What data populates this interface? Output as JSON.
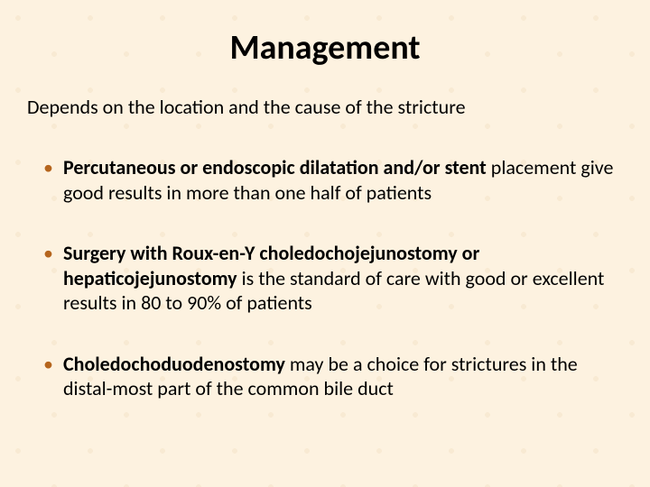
{
  "slide": {
    "title": "Management",
    "intro": "Depends on the location and the cause of the stricture",
    "bullets": [
      {
        "bold": "Percutaneous or endoscopic dilatation and/or stent",
        "rest": " placement give good results in more than one half of patients"
      },
      {
        "bold": "Surgery with Roux-en-Y choledochojejunostomy or hepaticojejunostomy",
        "rest": " is the standard of care with good or excellent results in 80 to 90% of patients"
      },
      {
        "bold": "Choledochoduodenostomy",
        "rest": " may be a choice for strictures in the distal-most part of the common bile duct"
      }
    ],
    "colors": {
      "background": "#fdf2e0",
      "bullet_marker": "#b5651d",
      "text": "#000000"
    },
    "typography": {
      "title_fontsize_pt": 28,
      "body_fontsize_pt": 17,
      "font_family": "Calibri"
    }
  }
}
